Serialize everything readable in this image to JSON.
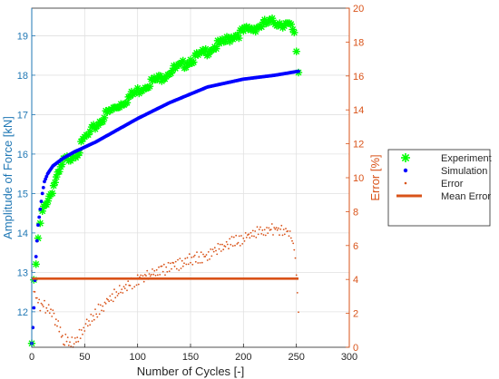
{
  "chart_data": {
    "type": "scatter",
    "xlabel": "Number of Cycles [-]",
    "ylabel_left": "Amplitude of Force [kN]",
    "ylabel_right": "Error [%]",
    "xlim": [
      0,
      300
    ],
    "ylim_left": [
      11.1,
      19.7
    ],
    "ylim_right": [
      0,
      20
    ],
    "x_ticks": [
      "0",
      "50",
      "100",
      "150",
      "200",
      "250",
      "300"
    ],
    "y_ticks_left": [
      "12",
      "13",
      "14",
      "15",
      "16",
      "17",
      "18",
      "19"
    ],
    "y_ticks_right": [
      "0",
      "2",
      "4",
      "6",
      "8",
      "10",
      "12",
      "14",
      "16",
      "18",
      "20"
    ],
    "grid": true,
    "legend_position": "right",
    "colors": {
      "left_axis": "#1f77b4",
      "right_axis": "#d95319",
      "experiment": "#00ff00",
      "simulation": "#0000ff",
      "error": "#d95319",
      "mean_error": "#d95319"
    },
    "series": [
      {
        "name": "Experiment",
        "axis": "left",
        "marker": "asterisk",
        "x": [
          0,
          2,
          4,
          6,
          8,
          10,
          14,
          18,
          22,
          26,
          30,
          35,
          40,
          45,
          50,
          55,
          60,
          70,
          80,
          90,
          100,
          110,
          120,
          130,
          140,
          150,
          160,
          170,
          180,
          190,
          200,
          210,
          220,
          230,
          240,
          245,
          248,
          250,
          252
        ],
        "values": [
          11.2,
          12.7,
          13.2,
          13.8,
          14.2,
          14.5,
          14.8,
          15.0,
          15.3,
          15.5,
          15.8,
          15.9,
          16.0,
          16.1,
          16.4,
          16.5,
          16.7,
          17.0,
          17.2,
          17.4,
          17.6,
          17.8,
          17.9,
          18.1,
          18.2,
          18.4,
          18.5,
          18.7,
          18.8,
          19.0,
          19.1,
          19.2,
          19.3,
          19.35,
          19.3,
          19.2,
          19.0,
          18.6,
          18.1
        ]
      },
      {
        "name": "Simulation",
        "axis": "left",
        "marker": "dot",
        "x": [
          0,
          1,
          2,
          3,
          4,
          5,
          6,
          8,
          10,
          12,
          15,
          20,
          30,
          40,
          60,
          80,
          100,
          130,
          166,
          200,
          230,
          252
        ],
        "values": [
          11.2,
          11.6,
          12.1,
          12.8,
          13.4,
          13.8,
          14.2,
          14.6,
          15.0,
          15.3,
          15.5,
          15.7,
          15.9,
          16.05,
          16.3,
          16.6,
          16.9,
          17.3,
          17.7,
          17.9,
          18.0,
          18.1
        ]
      },
      {
        "name": "Error",
        "axis": "right",
        "marker": "point",
        "x": [
          0,
          2,
          4,
          6,
          8,
          10,
          14,
          18,
          22,
          26,
          30,
          35,
          40,
          45,
          50,
          55,
          60,
          70,
          80,
          90,
          100,
          110,
          120,
          130,
          140,
          150,
          160,
          170,
          180,
          190,
          200,
          210,
          220,
          230,
          240,
          245,
          248,
          250,
          252
        ],
        "values": [
          4.5,
          3.5,
          3.0,
          2.8,
          2.5,
          2.6,
          2.3,
          2.2,
          1.6,
          1.2,
          0.5,
          0.3,
          0.2,
          0.7,
          1.2,
          1.6,
          2.0,
          2.6,
          3.2,
          3.6,
          4.0,
          4.3,
          4.4,
          4.7,
          4.9,
          5.2,
          5.3,
          5.6,
          5.9,
          6.2,
          6.4,
          6.7,
          6.9,
          7.0,
          6.9,
          6.6,
          5.8,
          4.3,
          2.1
        ]
      },
      {
        "name": "Mean Error",
        "axis": "right",
        "marker": "line",
        "x": [
          0,
          252
        ],
        "values": [
          4.05,
          4.05
        ]
      }
    ],
    "legend": [
      "Experiment",
      "Simulation",
      "Error",
      "Mean Error"
    ]
  }
}
